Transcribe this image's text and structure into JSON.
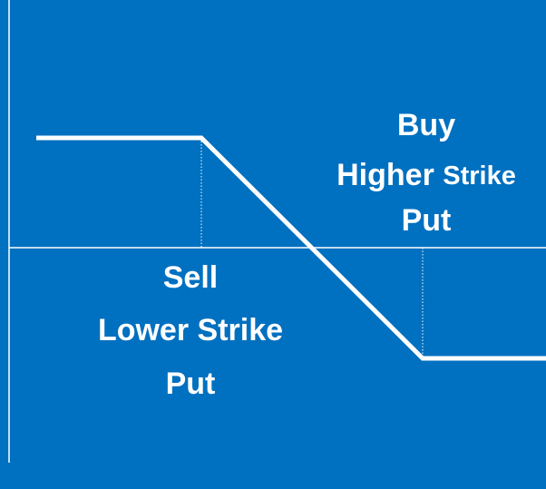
{
  "annotations": [
    {
      "lines": [
        [
          "Buy"
        ],
        [
          "Higher",
          "Strike"
        ],
        [
          "Put"
        ]
      ]
    },
    {
      "lines": [
        [
          "Sell"
        ],
        [
          "Lower Strike"
        ],
        [
          "Put"
        ]
      ]
    }
  ]
}
